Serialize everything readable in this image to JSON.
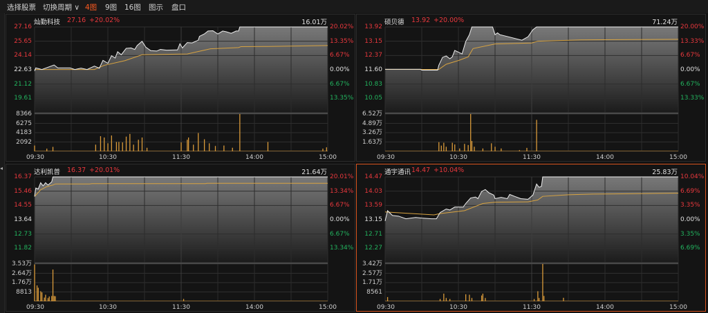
{
  "toolbar": {
    "items": [
      "选择股票",
      "切换周期 ∨",
      "4图",
      "9图",
      "16图",
      "图示",
      "盘口"
    ],
    "active_index": 2
  },
  "colors": {
    "up": "#e8383d",
    "down": "#22b35e",
    "price_line": "#f0f0f0",
    "avg_line": "#d9a441",
    "volume": "#d99a3a",
    "selected_border": "#d9541e",
    "active_tab": "#ff5a1f"
  },
  "time_labels": [
    "09:30",
    "10:30",
    "11:30",
    "14:00",
    "15:00"
  ],
  "panels": [
    {
      "name": "灿勤科技",
      "price": "27.16",
      "change_pct": "+20.02%",
      "total_volume": "16.01万",
      "selected": false,
      "price_labels": [
        "27.16",
        "25.65",
        "24.14",
        "22.63",
        "21.12",
        "19.61"
      ],
      "pct_labels": [
        "20.02%",
        "13.35%",
        "6.67%",
        "0.00%",
        "6.67%",
        "13.35%"
      ],
      "volume_labels": [
        "8366",
        "6275",
        "4183",
        "2092"
      ],
      "base": 22.63,
      "limit": 27.16,
      "volume_max": 8366,
      "price_series": [
        [
          "09:30",
          22.51
        ],
        [
          "09:31",
          22.83
        ],
        [
          "09:36",
          22.66
        ],
        [
          "09:46",
          23.14
        ],
        [
          "09:49",
          22.83
        ],
        [
          "09:59",
          22.83
        ],
        [
          "10:03",
          22.66
        ],
        [
          "10:08",
          22.8
        ],
        [
          "10:13",
          22.66
        ],
        [
          "10:19",
          23.02
        ],
        [
          "10:23",
          22.8
        ],
        [
          "10:26",
          23.63
        ],
        [
          "10:30",
          23.31
        ],
        [
          "10:33",
          24.12
        ],
        [
          "10:36",
          23.87
        ],
        [
          "10:38",
          24.54
        ],
        [
          "10:41",
          24.22
        ],
        [
          "10:45",
          24.9
        ],
        [
          "10:49",
          24.94
        ],
        [
          "10:52",
          24.78
        ],
        [
          "10:54",
          25.2
        ],
        [
          "10:58",
          25.64
        ],
        [
          "11:01",
          25.03
        ],
        [
          "11:05",
          24.66
        ],
        [
          "11:10",
          24.61
        ],
        [
          "11:13",
          24.78
        ],
        [
          "11:18",
          24.7
        ],
        [
          "11:23",
          24.72
        ],
        [
          "11:27",
          24.73
        ],
        [
          "11:29",
          25.39
        ],
        [
          "13:01",
          24.94
        ],
        [
          "13:05",
          25.51
        ],
        [
          "13:09",
          25.47
        ],
        [
          "13:14",
          25.76
        ],
        [
          "13:15",
          26.17
        ],
        [
          "13:19",
          26.42
        ],
        [
          "13:22",
          26.73
        ],
        [
          "13:26",
          26.76
        ],
        [
          "13:30",
          26.42
        ],
        [
          "13:34",
          26.73
        ],
        [
          "13:37",
          26.65
        ],
        [
          "13:41",
          26.49
        ],
        [
          "13:45",
          26.73
        ],
        [
          "13:47",
          26.73
        ],
        [
          "13:48",
          27.16
        ],
        [
          "15:00",
          27.16
        ]
      ],
      "avg_series": [
        [
          "09:30",
          22.66
        ],
        [
          "10:19",
          22.66
        ],
        [
          "10:27",
          23.1
        ],
        [
          "10:44",
          23.6
        ],
        [
          "10:58",
          24.22
        ],
        [
          "13:05",
          24.3
        ],
        [
          "13:24",
          24.85
        ],
        [
          "13:47",
          24.98
        ],
        [
          "13:49",
          25.08
        ],
        [
          "14:11",
          25.1
        ],
        [
          "15:00",
          25.2
        ]
      ],
      "volume": [
        [
          "09:30",
          1300
        ],
        [
          "09:40",
          600
        ],
        [
          "09:45",
          1000
        ],
        [
          "10:20",
          1500
        ],
        [
          "10:24",
          3400
        ],
        [
          "10:27",
          3100
        ],
        [
          "10:30",
          1800
        ],
        [
          "10:33",
          3550
        ],
        [
          "10:37",
          2100
        ],
        [
          "10:39",
          2100
        ],
        [
          "10:42",
          2000
        ],
        [
          "10:45",
          3300
        ],
        [
          "10:48",
          3900
        ],
        [
          "10:51",
          1500
        ],
        [
          "10:55",
          2600
        ],
        [
          "10:58",
          3100
        ],
        [
          "11:02",
          800
        ],
        [
          "13:00",
          2000
        ],
        [
          "13:05",
          2600
        ],
        [
          "13:06",
          3100
        ],
        [
          "13:10",
          1500
        ],
        [
          "13:14",
          4100
        ],
        [
          "13:19",
          2700
        ],
        [
          "13:23",
          1800
        ],
        [
          "13:28",
          1200
        ],
        [
          "13:35",
          1300
        ],
        [
          "13:42",
          800
        ],
        [
          "13:48",
          8366
        ],
        [
          "14:11",
          2100
        ],
        [
          "14:56",
          600
        ],
        [
          "14:59",
          900
        ]
      ]
    },
    {
      "name": "硕贝德",
      "price": "13.92",
      "change_pct": "+20.00%",
      "total_volume": "71.24万",
      "selected": false,
      "price_labels": [
        "13.92",
        "13.15",
        "12.37",
        "11.60",
        "10.83",
        "10.05"
      ],
      "pct_labels": [
        "20.00%",
        "13.33%",
        "6.67%",
        "0.00%",
        "6.67%",
        "13.33%"
      ],
      "volume_labels": [
        "6.52万",
        "4.89万",
        "3.26万",
        "1.63万"
      ],
      "base": 11.6,
      "limit": 13.92,
      "volume_max": 65200,
      "price_series": [
        [
          "09:30",
          11.63
        ],
        [
          "09:59",
          11.63
        ],
        [
          "10:00",
          11.58
        ],
        [
          "10:13",
          11.58
        ],
        [
          "10:14",
          11.85
        ],
        [
          "10:17",
          12.27
        ],
        [
          "10:20",
          12.35
        ],
        [
          "10:23",
          12.2
        ],
        [
          "10:25",
          12.3
        ],
        [
          "10:27",
          12.65
        ],
        [
          "10:33",
          12.46
        ],
        [
          "10:36",
          13.13
        ],
        [
          "10:39",
          13.5
        ],
        [
          "10:41",
          13.92
        ],
        [
          "10:58",
          13.92
        ],
        [
          "11:00",
          13.5
        ],
        [
          "11:02",
          13.6
        ],
        [
          "11:04",
          13.5
        ],
        [
          "11:12",
          13.37
        ],
        [
          "11:22",
          13.2
        ],
        [
          "11:27",
          13.39
        ],
        [
          "13:01",
          13.77
        ],
        [
          "13:04",
          13.92
        ],
        [
          "15:00",
          13.92
        ]
      ],
      "avg_series": [
        [
          "09:30",
          11.62
        ],
        [
          "10:14",
          11.62
        ],
        [
          "10:20",
          11.9
        ],
        [
          "10:30",
          12.1
        ],
        [
          "10:38",
          12.3
        ],
        [
          "10:42",
          12.75
        ],
        [
          "11:00",
          13.0
        ],
        [
          "13:00",
          13.05
        ],
        [
          "13:05",
          13.15
        ],
        [
          "13:40",
          13.22
        ],
        [
          "15:00",
          13.25
        ]
      ],
      "volume": [
        [
          "10:14",
          16000
        ],
        [
          "10:16",
          10000
        ],
        [
          "10:18",
          15000
        ],
        [
          "10:20",
          8000
        ],
        [
          "10:25",
          15000
        ],
        [
          "10:27",
          12000
        ],
        [
          "10:31",
          5000
        ],
        [
          "10:35",
          13000
        ],
        [
          "10:38",
          11000
        ],
        [
          "10:40",
          65200
        ],
        [
          "10:41",
          18000
        ],
        [
          "10:43",
          8000
        ],
        [
          "10:50",
          5000
        ],
        [
          "10:57",
          14000
        ],
        [
          "11:00",
          8000
        ],
        [
          "11:05",
          5000
        ],
        [
          "11:20",
          2000
        ],
        [
          "11:26",
          6000
        ],
        [
          "13:04",
          55000
        ]
      ]
    },
    {
      "name": "达利凯普",
      "price": "16.37",
      "change_pct": "+20.01%",
      "total_volume": "21.64万",
      "selected": false,
      "price_labels": [
        "16.37",
        "15.46",
        "14.55",
        "13.64",
        "12.73",
        "11.82"
      ],
      "pct_labels": [
        "20.01%",
        "13.34%",
        "6.67%",
        "0.00%",
        "6.67%",
        "13.34%"
      ],
      "volume_labels": [
        "3.53万",
        "2.64万",
        "1.76万",
        "8813"
      ],
      "base": 13.64,
      "limit": 16.37,
      "volume_max": 35300,
      "price_series": [
        [
          "09:30",
          15.12
        ],
        [
          "09:31",
          15.66
        ],
        [
          "09:33",
          15.6
        ],
        [
          "09:35",
          16.0
        ],
        [
          "09:37",
          15.8
        ],
        [
          "09:39",
          16.0
        ],
        [
          "09:41",
          15.85
        ],
        [
          "09:44",
          16.05
        ],
        [
          "09:45",
          16.37
        ],
        [
          "15:00",
          16.37
        ]
      ],
      "avg_series": [
        [
          "09:30",
          15.12
        ],
        [
          "09:35",
          15.55
        ],
        [
          "09:40",
          15.75
        ],
        [
          "09:45",
          15.85
        ],
        [
          "09:47",
          15.92
        ],
        [
          "10:15",
          15.92
        ],
        [
          "10:17",
          15.94
        ],
        [
          "13:20",
          15.94
        ],
        [
          "13:21",
          15.96
        ],
        [
          "15:00",
          15.96
        ]
      ],
      "volume": [
        [
          "09:30",
          34900
        ],
        [
          "09:32",
          15000
        ],
        [
          "09:33",
          12800
        ],
        [
          "09:35",
          9500
        ],
        [
          "09:36",
          8400
        ],
        [
          "09:38",
          3500
        ],
        [
          "09:39",
          6200
        ],
        [
          "09:41",
          3000
        ],
        [
          "09:42",
          4500
        ],
        [
          "09:44",
          5000
        ],
        [
          "09:45",
          30000
        ],
        [
          "09:46",
          5000
        ],
        [
          "09:47",
          4800
        ],
        [
          "13:02",
          2200
        ]
      ]
    },
    {
      "name": "通宇通讯",
      "price": "14.47",
      "change_pct": "+10.04%",
      "total_volume": "25.83万",
      "selected": true,
      "price_labels": [
        "14.47",
        "14.03",
        "13.59",
        "13.15",
        "12.71",
        "12.27"
      ],
      "pct_labels": [
        "10.04%",
        "6.69%",
        "3.35%",
        "0.00%",
        "3.35%",
        "6.69%"
      ],
      "volume_labels": [
        "3.42万",
        "2.57万",
        "1.71万",
        "8561"
      ],
      "base": 13.15,
      "limit": 14.47,
      "volume_max": 34200,
      "price_series": [
        [
          "09:30",
          13.11
        ],
        [
          "09:32",
          13.43
        ],
        [
          "09:36",
          13.28
        ],
        [
          "09:41",
          13.26
        ],
        [
          "09:47",
          13.18
        ],
        [
          "09:55",
          13.22
        ],
        [
          "10:00",
          13.2
        ],
        [
          "10:08",
          13.18
        ],
        [
          "10:12",
          13.18
        ],
        [
          "10:15",
          13.37
        ],
        [
          "10:20",
          13.48
        ],
        [
          "10:23",
          13.45
        ],
        [
          "10:27",
          13.54
        ],
        [
          "10:34",
          13.54
        ],
        [
          "10:36",
          13.65
        ],
        [
          "10:40",
          13.82
        ],
        [
          "10:44",
          13.85
        ],
        [
          "10:46",
          13.8
        ],
        [
          "10:49",
          14.02
        ],
        [
          "10:52",
          14.08
        ],
        [
          "10:55",
          13.98
        ],
        [
          "10:59",
          13.91
        ],
        [
          "11:00",
          13.8
        ],
        [
          "11:05",
          13.84
        ],
        [
          "11:10",
          13.8
        ],
        [
          "11:12",
          13.93
        ],
        [
          "11:16",
          13.87
        ],
        [
          "11:21",
          13.8
        ],
        [
          "11:27",
          13.78
        ],
        [
          "13:01",
          13.91
        ],
        [
          "13:04",
          14.25
        ],
        [
          "13:06",
          14.15
        ],
        [
          "13:08",
          14.18
        ],
        [
          "13:09",
          14.47
        ],
        [
          "15:00",
          14.47
        ]
      ],
      "avg_series": [
        [
          "09:30",
          13.39
        ],
        [
          "10:10",
          13.3
        ],
        [
          "10:15",
          13.34
        ],
        [
          "10:35",
          13.43
        ],
        [
          "10:50",
          13.65
        ],
        [
          "11:00",
          13.69
        ],
        [
          "11:27",
          13.7
        ],
        [
          "13:05",
          13.76
        ],
        [
          "13:09",
          13.87
        ],
        [
          "13:30",
          13.92
        ],
        [
          "13:50",
          13.94
        ],
        [
          "14:20",
          13.95
        ],
        [
          "15:00",
          13.97
        ]
      ],
      "volume": [
        [
          "09:32",
          3850
        ],
        [
          "10:15",
          2100
        ],
        [
          "10:18",
          7000
        ],
        [
          "10:20",
          3000
        ],
        [
          "10:23",
          2100
        ],
        [
          "10:36",
          6400
        ],
        [
          "10:39",
          6000
        ],
        [
          "10:41",
          3000
        ],
        [
          "10:49",
          5300
        ],
        [
          "10:50",
          7000
        ],
        [
          "10:52",
          3000
        ],
        [
          "13:02",
          2100
        ],
        [
          "13:05",
          9200
        ],
        [
          "13:06",
          3000
        ],
        [
          "13:09",
          34200
        ],
        [
          "13:10",
          4900
        ],
        [
          "13:26",
          3200
        ]
      ]
    }
  ]
}
